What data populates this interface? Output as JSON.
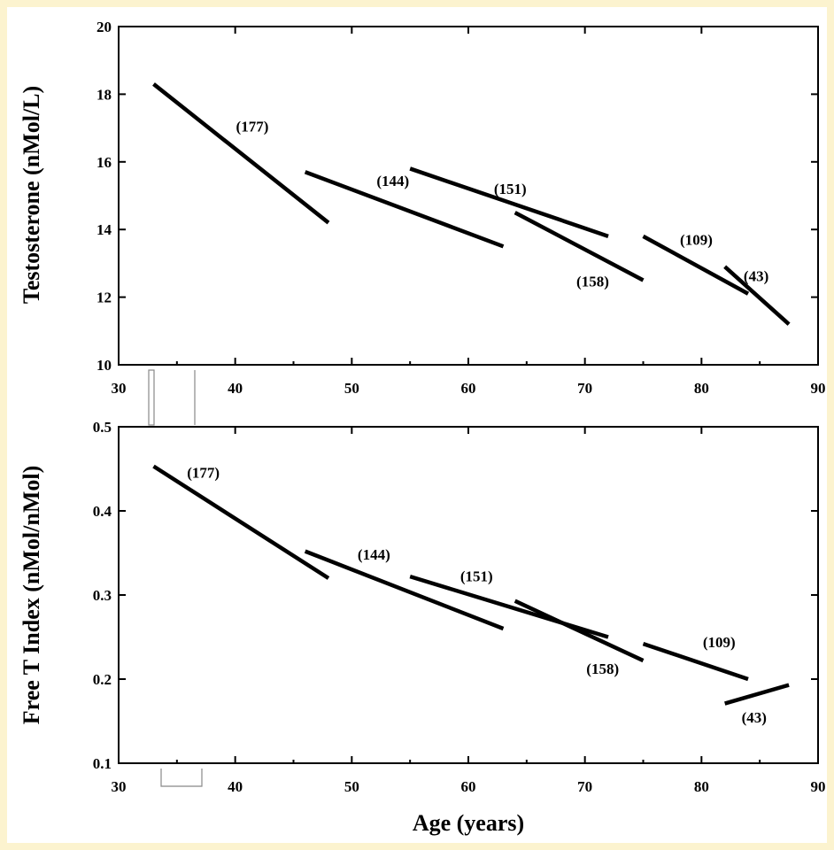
{
  "chart_data": [
    {
      "type": "line",
      "ylabel": "Testosterone (nMol/L)",
      "xlabel": "",
      "xlim": [
        30,
        90
      ],
      "ylim": [
        10,
        20
      ],
      "xticks": [
        30,
        40,
        50,
        60,
        70,
        80,
        90
      ],
      "yticks": [
        10,
        12,
        14,
        16,
        18,
        20
      ],
      "grid": false,
      "series": [
        {
          "label": "(177)",
          "x": [
            33,
            48
          ],
          "y": [
            18.3,
            14.2
          ]
        },
        {
          "label": "(144)",
          "x": [
            46,
            63
          ],
          "y": [
            15.7,
            13.5
          ]
        },
        {
          "label": "(151)",
          "x": [
            55,
            72
          ],
          "y": [
            15.8,
            13.8
          ]
        },
        {
          "label": "(158)",
          "x": [
            64,
            75
          ],
          "y": [
            14.5,
            12.5
          ]
        },
        {
          "label": "(109)",
          "x": [
            75,
            84
          ],
          "y": [
            13.8,
            12.1
          ]
        },
        {
          "label": "(43)",
          "x": [
            82,
            87.5
          ],
          "y": [
            12.9,
            11.2
          ]
        }
      ]
    },
    {
      "type": "line",
      "ylabel": "Free T Index (nMol/nMol)",
      "xlabel": "Age (years)",
      "xlim": [
        30,
        90
      ],
      "ylim": [
        0.1,
        0.5
      ],
      "xticks": [
        30,
        40,
        50,
        60,
        70,
        80,
        90
      ],
      "yticks": [
        0.1,
        0.2,
        0.3,
        0.4,
        0.5
      ],
      "grid": false,
      "series": [
        {
          "label": "(177)",
          "x": [
            33,
            48
          ],
          "y": [
            0.453,
            0.32
          ]
        },
        {
          "label": "(144)",
          "x": [
            46,
            63
          ],
          "y": [
            0.352,
            0.26
          ]
        },
        {
          "label": "(151)",
          "x": [
            55,
            72
          ],
          "y": [
            0.322,
            0.25
          ]
        },
        {
          "label": "(158)",
          "x": [
            64,
            75
          ],
          "y": [
            0.293,
            0.222
          ]
        },
        {
          "label": "(109)",
          "x": [
            75,
            84
          ],
          "y": [
            0.242,
            0.2
          ]
        },
        {
          "label": "(43)",
          "x": [
            82,
            87.5
          ],
          "y": [
            0.171,
            0.193
          ]
        }
      ]
    }
  ]
}
